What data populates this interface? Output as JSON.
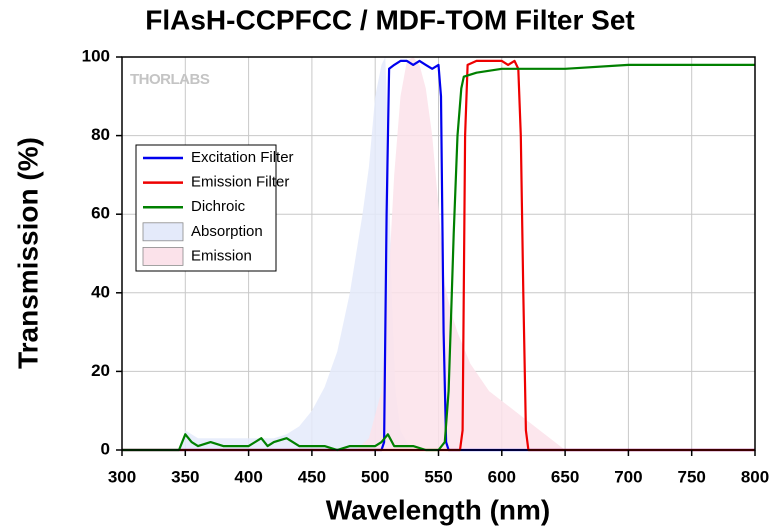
{
  "chart_data": {
    "type": "line",
    "title": "FlAsH-CCPFCC / MDF-TOM Filter Set",
    "x_label": "Wavelength (nm)",
    "y_label": "Transmission (%)",
    "watermark": "THORLABS",
    "xlim": [
      300,
      800
    ],
    "ylim": [
      0,
      100
    ],
    "xticks": [
      300,
      350,
      400,
      450,
      500,
      550,
      600,
      650,
      700,
      750,
      800
    ],
    "yticks": [
      0,
      20,
      40,
      60,
      80,
      100
    ],
    "grid": true,
    "legend": "upper-left",
    "series": [
      {
        "name": "Excitation Filter",
        "color": "#0000ee",
        "fill": false,
        "x": [
          300,
          505,
          507,
          509,
          511,
          515,
          520,
          525,
          530,
          535,
          540,
          545,
          550,
          552,
          554,
          556,
          558,
          800
        ],
        "values": [
          0,
          0,
          2,
          60,
          97,
          98,
          99,
          99,
          98,
          99,
          98,
          97,
          98,
          90,
          30,
          2,
          0,
          0
        ]
      },
      {
        "name": "Emission Filter",
        "color": "#ee0000",
        "fill": false,
        "x": [
          300,
          567,
          569,
          571,
          573,
          580,
          590,
          600,
          605,
          610,
          613,
          615,
          617,
          619,
          621,
          800
        ],
        "values": [
          0,
          0,
          5,
          80,
          98,
          99,
          99,
          99,
          98,
          99,
          97,
          80,
          40,
          5,
          0,
          0
        ]
      },
      {
        "name": "Dichroic",
        "color": "#008000",
        "fill": false,
        "x": [
          300,
          345,
          350,
          355,
          360,
          370,
          380,
          390,
          400,
          410,
          415,
          420,
          430,
          440,
          450,
          460,
          470,
          480,
          490,
          500,
          505,
          510,
          515,
          520,
          530,
          540,
          550,
          555,
          558,
          560,
          562,
          565,
          568,
          570,
          580,
          600,
          650,
          700,
          750,
          800
        ],
        "values": [
          0,
          0,
          4,
          2,
          1,
          2,
          1,
          1,
          1,
          3,
          1,
          2,
          3,
          1,
          1,
          1,
          0,
          1,
          1,
          1,
          2,
          4,
          1,
          1,
          1,
          0,
          0,
          2,
          15,
          35,
          55,
          80,
          92,
          95,
          96,
          97,
          97,
          98,
          98,
          98
        ]
      },
      {
        "name": "Absorption",
        "color": "#e4eafa",
        "fill": true,
        "x": [
          345,
          350,
          360,
          380,
          400,
          420,
          430,
          440,
          450,
          460,
          470,
          480,
          490,
          495,
          500,
          505,
          508,
          510,
          513,
          516,
          520,
          525,
          530
        ],
        "values": [
          0,
          5,
          3,
          3,
          3,
          3,
          4,
          6,
          10,
          16,
          25,
          40,
          60,
          72,
          90,
          98,
          100,
          80,
          40,
          15,
          5,
          2,
          0
        ]
      },
      {
        "name": "Emission",
        "color": "#fbe2ea",
        "fill": true,
        "x": [
          485,
          495,
          505,
          510,
          515,
          520,
          525,
          530,
          535,
          540,
          545,
          550,
          555,
          560,
          565,
          575,
          590,
          610,
          630,
          650
        ],
        "values": [
          0,
          3,
          15,
          40,
          70,
          90,
          99,
          100,
          98,
          92,
          80,
          62,
          42,
          35,
          30,
          22,
          15,
          10,
          5,
          0
        ]
      }
    ]
  }
}
